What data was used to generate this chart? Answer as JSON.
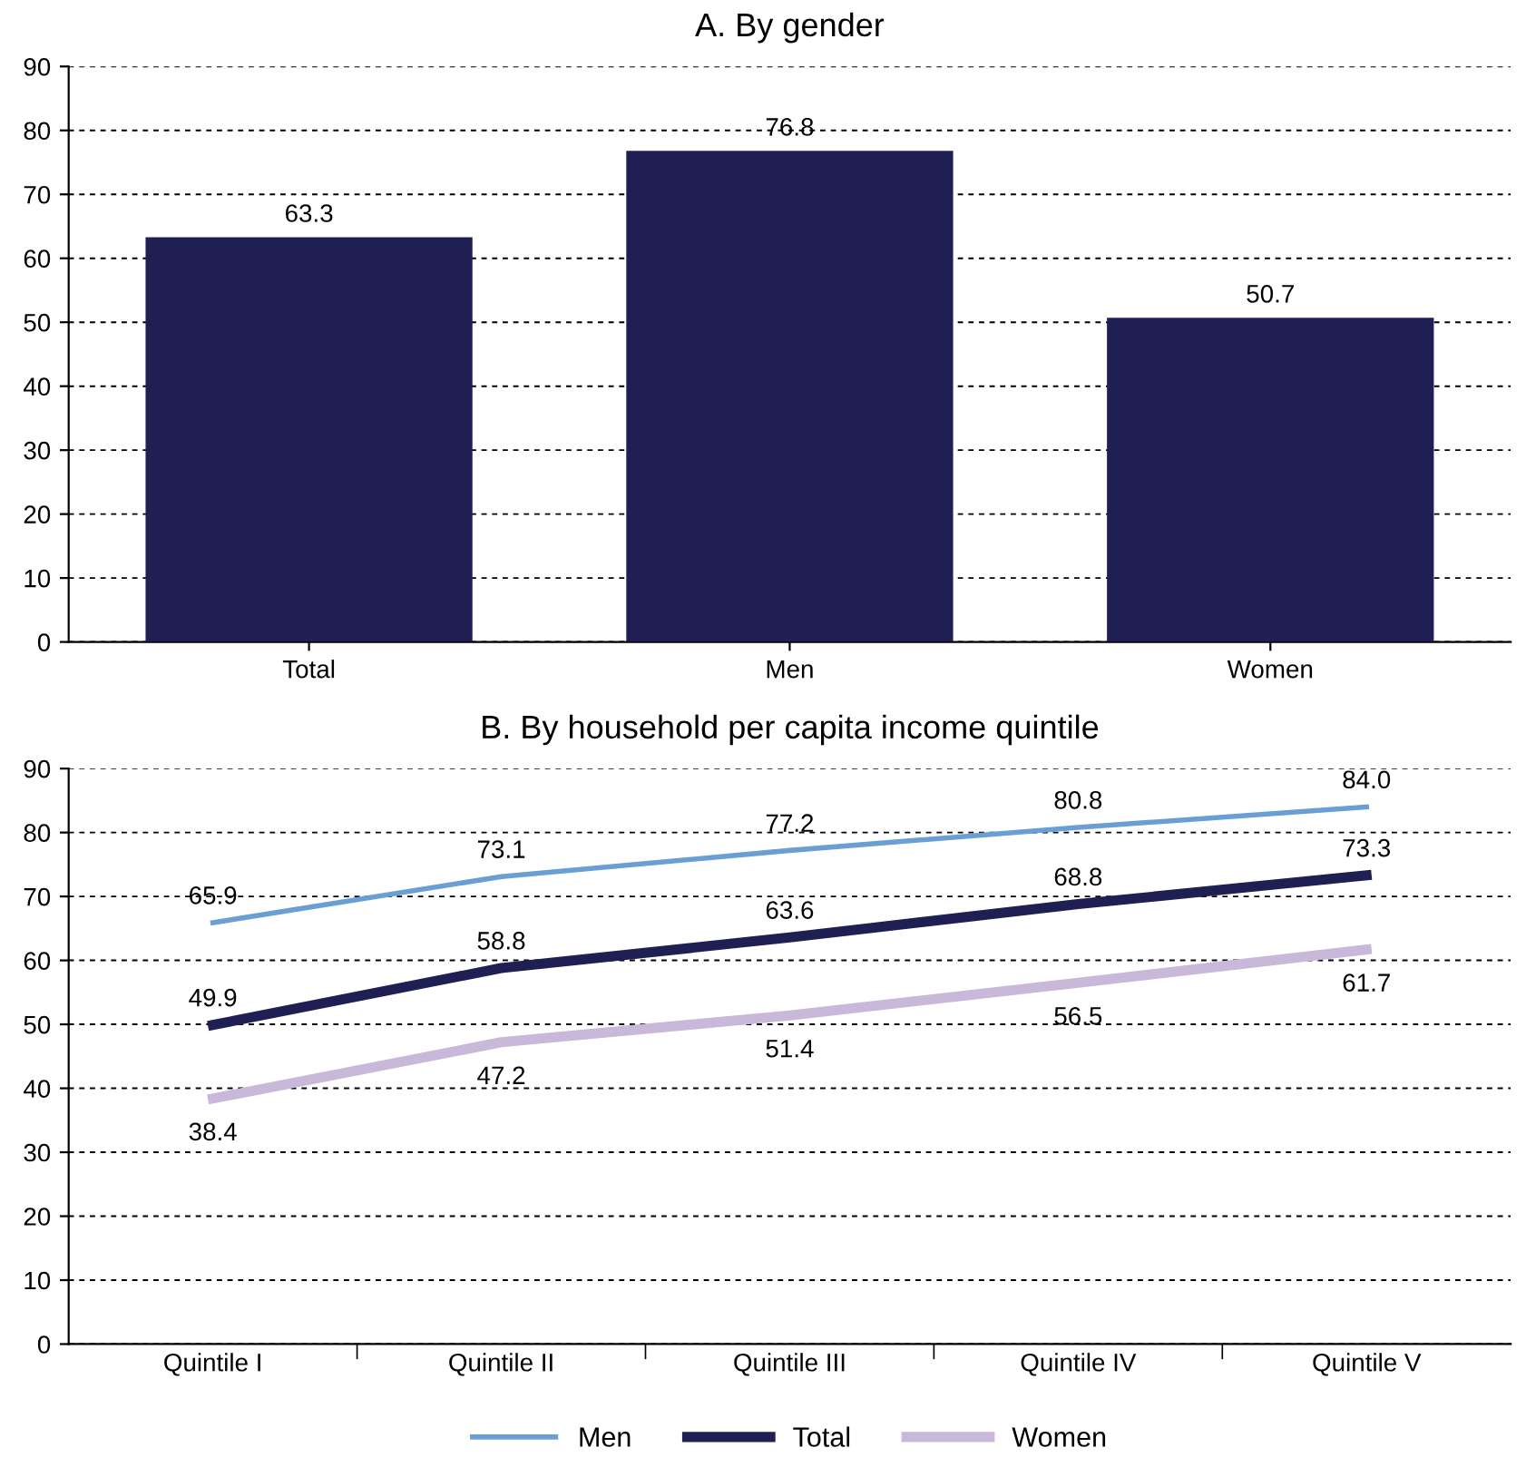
{
  "chart_data": [
    {
      "type": "bar",
      "title": "A. By gender",
      "categories": [
        "Total",
        "Men",
        "Women"
      ],
      "values": [
        63.3,
        76.8,
        50.7
      ],
      "color": "#1f1f54",
      "ylim": [
        0,
        90
      ],
      "yticks": [
        0,
        10,
        20,
        30,
        40,
        50,
        60,
        70,
        80,
        90
      ],
      "grid": "y",
      "data_labels": true
    },
    {
      "type": "line",
      "title": "B. By household per capita income quintile",
      "categories": [
        "Quintile I",
        "Quintile II",
        "Quintile III",
        "Quintile IV",
        "Quintile V"
      ],
      "series": [
        {
          "name": "Men",
          "color": "#6a9fd4",
          "values": [
            65.9,
            73.1,
            77.2,
            80.8,
            84.0
          ],
          "value_labels": [
            "65.9",
            "73.1",
            "77.2",
            "80.8",
            "84.0"
          ]
        },
        {
          "name": "Total",
          "color": "#1f1f54",
          "values": [
            49.9,
            58.8,
            63.6,
            68.8,
            73.3
          ],
          "value_labels": [
            "49.9",
            "58.8",
            "63.6",
            "68.8",
            "73.3"
          ]
        },
        {
          "name": "Women",
          "color": "#c9b8da",
          "values": [
            38.4,
            47.2,
            51.4,
            56.5,
            61.7
          ],
          "value_labels": [
            "38.4",
            "47.2",
            "51.4",
            "56.5",
            "61.7"
          ]
        }
      ],
      "ylim": [
        0,
        90
      ],
      "yticks": [
        0,
        10,
        20,
        30,
        40,
        50,
        60,
        70,
        80,
        90
      ],
      "grid": "y",
      "legend": "bottom",
      "marker": "none",
      "line_style": "solid"
    }
  ]
}
